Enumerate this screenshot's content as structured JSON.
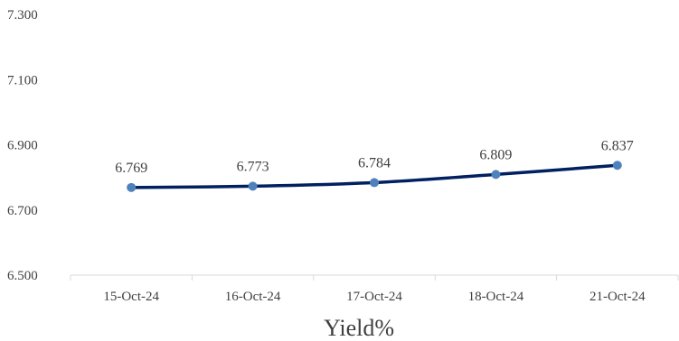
{
  "chart_data": {
    "type": "line",
    "title": "",
    "xlabel": "Yield%",
    "ylabel": "",
    "categories": [
      "15-Oct-24",
      "16-Oct-24",
      "17-Oct-24",
      "18-Oct-24",
      "21-Oct-24"
    ],
    "series": [
      {
        "values": [
          6.769,
          6.773,
          6.784,
          6.809,
          6.837
        ],
        "labels": [
          "6.769",
          "6.773",
          "6.784",
          "6.809",
          "6.837"
        ]
      }
    ],
    "ylim": [
      6.5,
      7.3
    ],
    "yticks": [
      "6.500",
      "6.700",
      "6.900",
      "7.100",
      "7.300"
    ],
    "grid": false,
    "legend": "none",
    "colors": {
      "line": "#002060",
      "marker": "#4f81bd",
      "axis": "#d9d9d9",
      "text": "#404040"
    }
  }
}
